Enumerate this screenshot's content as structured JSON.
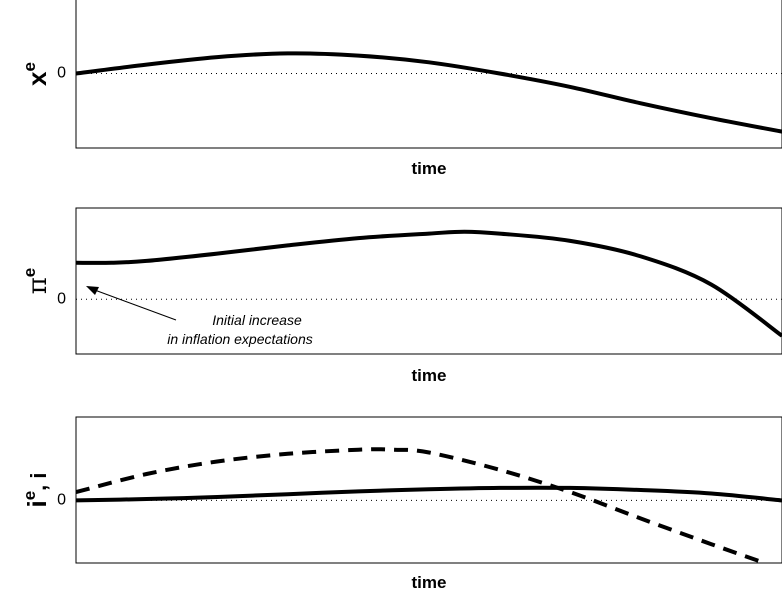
{
  "chart_data": [
    {
      "type": "line",
      "ylabel": "x",
      "ylabel_superscript": "e",
      "xlabel": "time",
      "yticks": [
        0
      ],
      "ylim": [
        -1.0,
        1.0
      ],
      "grid": "dotted zero line",
      "series": [
        {
          "style": "solid",
          "x": [
            0.0,
            0.1,
            0.2,
            0.3,
            0.4,
            0.5,
            0.6,
            0.7,
            0.8,
            0.9,
            1.0
          ],
          "values": [
            0.0,
            0.12,
            0.22,
            0.27,
            0.24,
            0.15,
            0.0,
            -0.18,
            -0.4,
            -0.6,
            -0.78
          ]
        }
      ]
    },
    {
      "type": "line",
      "ylabel": "π",
      "ylabel_superscript": "e",
      "xlabel": "time",
      "yticks": [
        0
      ],
      "ylim": [
        -0.6,
        1.0
      ],
      "grid": "dotted zero line",
      "annotation": [
        "Initial increase",
        "in inflation expectations"
      ],
      "series": [
        {
          "style": "solid",
          "x": [
            0.0,
            0.05,
            0.1,
            0.2,
            0.3,
            0.4,
            0.5,
            0.55,
            0.6,
            0.7,
            0.8,
            0.9,
            1.0
          ],
          "values": [
            0.4,
            0.4,
            0.42,
            0.5,
            0.59,
            0.67,
            0.72,
            0.74,
            0.72,
            0.64,
            0.47,
            0.16,
            -0.4
          ]
        }
      ]
    },
    {
      "type": "line",
      "ylabel": "i",
      "ylabel_superscript": "e",
      "ylabel_suffix": ", i",
      "xlabel": "time",
      "yticks": [
        0
      ],
      "ylim": [
        -0.9,
        1.2
      ],
      "grid": "dotted zero line",
      "series": [
        {
          "style": "solid",
          "x": [
            0.0,
            0.1,
            0.2,
            0.3,
            0.4,
            0.5,
            0.6,
            0.7,
            0.8,
            0.9,
            1.0
          ],
          "values": [
            0.0,
            0.02,
            0.05,
            0.09,
            0.13,
            0.16,
            0.18,
            0.18,
            0.15,
            0.1,
            0.0
          ]
        },
        {
          "style": "dashed",
          "x": [
            0.0,
            0.1,
            0.2,
            0.3,
            0.4,
            0.45,
            0.5,
            0.6,
            0.7,
            0.8,
            0.9,
            0.97
          ],
          "values": [
            0.12,
            0.38,
            0.56,
            0.67,
            0.73,
            0.73,
            0.69,
            0.44,
            0.12,
            -0.26,
            -0.63,
            -0.88
          ]
        }
      ]
    }
  ]
}
